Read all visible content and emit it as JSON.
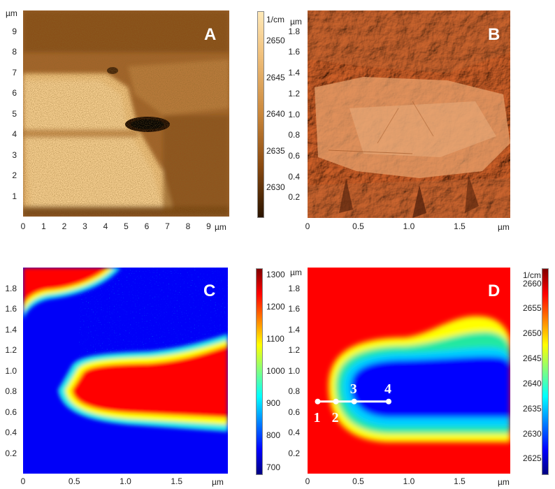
{
  "chart_data": [
    {
      "panel": "A",
      "type": "heatmap",
      "x_ticks": [
        "0",
        "1",
        "2",
        "3",
        "4",
        "5",
        "6",
        "7",
        "8",
        "9"
      ],
      "x_unit": "µm",
      "y_ticks": [
        "1",
        "2",
        "3",
        "4",
        "5",
        "6",
        "7",
        "8",
        "9"
      ],
      "y_unit": "µm",
      "xlim": [
        0,
        10
      ],
      "ylim": [
        0,
        10
      ],
      "colorbar": {
        "unit": "1/cm",
        "ticks": [
          "2650",
          "2645",
          "2640",
          "2635",
          "2630"
        ],
        "range": [
          2626,
          2654
        ],
        "colors": [
          "#2a1400",
          "#8a4a10",
          "#c9863a",
          "#f1c27e",
          "#ffe9b8"
        ]
      }
    },
    {
      "panel": "B",
      "type": "heatmap",
      "x_ticks": [
        "0",
        "0.5",
        "1.0",
        "1.5"
      ],
      "x_unit": "µm",
      "y_ticks": [
        "0.2",
        "0.4",
        "0.6",
        "0.8",
        "1.0",
        "1.2",
        "1.4",
        "1.6",
        "1.8"
      ],
      "y_unit": "µm",
      "xlim": [
        0,
        2
      ],
      "ylim": [
        0,
        2
      ]
    },
    {
      "panel": "C",
      "type": "heatmap",
      "x_ticks": [
        "0",
        "0.5",
        "1.0",
        "1.5"
      ],
      "x_unit": "µm",
      "y_ticks": [
        "0.2",
        "0.4",
        "0.6",
        "0.8",
        "1.0",
        "1.2",
        "1.4",
        "1.6",
        "1.8"
      ],
      "y_unit": "µm",
      "xlim": [
        0,
        2
      ],
      "ylim": [
        0,
        2
      ],
      "colorbar": {
        "ticks": [
          "1300",
          "1200",
          "1100",
          "1000",
          "900",
          "800",
          "700"
        ],
        "range": [
          680,
          1320
        ]
      }
    },
    {
      "panel": "D",
      "type": "heatmap",
      "x_ticks": [
        "0",
        "0.5",
        "1.0",
        "1.5"
      ],
      "x_unit": "µm",
      "y_ticks": [
        "0.2",
        "0.4",
        "0.6",
        "0.8",
        "1.0",
        "1.2",
        "1.4",
        "1.6",
        "1.8"
      ],
      "y_unit": "µm",
      "xlim": [
        0,
        2
      ],
      "ylim": [
        0,
        2
      ],
      "colorbar": {
        "unit": "1/cm",
        "ticks": [
          "2660",
          "2655",
          "2650",
          "2645",
          "2640",
          "2635",
          "2630",
          "2625"
        ],
        "range": [
          2622,
          2663
        ]
      },
      "line_markers": [
        {
          "label": "1",
          "x": 0.1,
          "y": 0.7
        },
        {
          "label": "2",
          "x": 0.28,
          "y": 0.7
        },
        {
          "label": "3",
          "x": 0.46,
          "y": 0.7
        },
        {
          "label": "4",
          "x": 0.8,
          "y": 0.7
        }
      ]
    }
  ],
  "labels": {
    "A": "A",
    "B": "B",
    "C": "C",
    "D": "D",
    "um": "µm",
    "per_cm": "1/cm"
  },
  "colors": {
    "jet_red": "#ff0000",
    "jet_blue": "#0000ff",
    "topo_mid": "#d98a55",
    "sepia_light": "#f1c27e",
    "sepia_dark": "#3a1d05"
  }
}
